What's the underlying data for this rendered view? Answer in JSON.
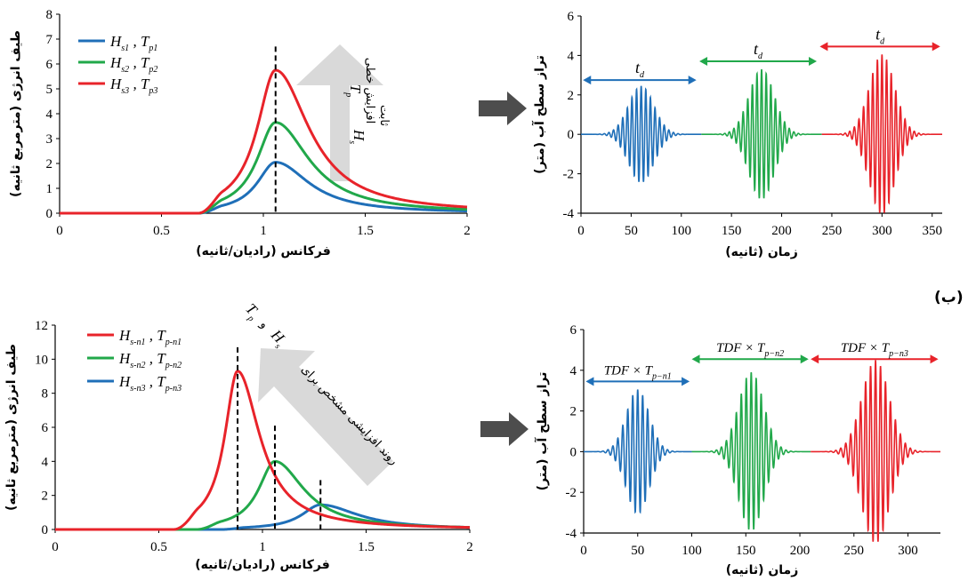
{
  "colors": {
    "blue": "#1f6fb8",
    "green": "#21a84a",
    "red": "#e8232a",
    "gray_arrow": "#d9d9d9",
    "dark_arrow": "#4d4d4d"
  },
  "panel_label_b": "(ب)",
  "chart_data": [
    {
      "id": "top-left",
      "type": "line",
      "xlabel": "فرکانس (رادیان/ثانیه)",
      "ylabel": "طیف انرژی (مترمربع ثانیه)",
      "xlim": [
        0,
        2
      ],
      "ylim": [
        0,
        8
      ],
      "xticks": [
        "0",
        "0.5",
        "1",
        "1.5",
        "2"
      ],
      "yticks": [
        "0",
        "1",
        "2",
        "3",
        "4",
        "5",
        "6",
        "7",
        "8"
      ],
      "legend_position": "top-left",
      "series": [
        {
          "name": "H_s1 , T_p1",
          "color": "blue",
          "peak_x": 1.06,
          "peak_y": 2.05,
          "onset": 0.68,
          "gamma_left": 0.11,
          "gamma_right": 0.2
        },
        {
          "name": "H_s2 , T_p2",
          "color": "green",
          "peak_x": 1.06,
          "peak_y": 3.65,
          "onset": 0.68,
          "gamma_left": 0.11,
          "gamma_right": 0.2
        },
        {
          "name": "H_s3 , T_p3",
          "color": "red",
          "peak_x": 1.06,
          "peak_y": 5.75,
          "onset": 0.68,
          "gamma_left": 0.11,
          "gamma_right": 0.2
        }
      ],
      "peak_markers": [
        {
          "x": 1.06,
          "y_top": 6.7
        }
      ],
      "annotation": {
        "persian_1": "افزایش خطی",
        "math_1": "H",
        "math_1_sub": "s",
        "persian_2": "ثابت",
        "math_2": "T",
        "math_2_sub": "p"
      }
    },
    {
      "id": "top-right",
      "type": "line",
      "xlabel": "زمان (ثانیه)",
      "ylabel": "تراز سطح آب (متر)",
      "xlim": [
        0,
        360
      ],
      "ylim": [
        -4,
        6
      ],
      "xticks": [
        "0",
        "50",
        "100",
        "150",
        "200",
        "250",
        "300",
        "350"
      ],
      "yticks": [
        "-4",
        "-2",
        "0",
        "2",
        "4",
        "6"
      ],
      "series": [
        {
          "color": "blue",
          "start": 0,
          "end": 120,
          "center": 60,
          "amp": 2.45
        },
        {
          "color": "green",
          "start": 120,
          "end": 240,
          "center": 180,
          "amp": 3.3
        },
        {
          "color": "red",
          "start": 240,
          "end": 360,
          "center": 300,
          "amp": 4.05
        }
      ],
      "duration_arrows": [
        {
          "label": "t",
          "sub": "d",
          "color": "blue",
          "x1": 2,
          "x2": 115,
          "y": 2.75
        },
        {
          "label": "t",
          "sub": "d",
          "color": "green",
          "x1": 118,
          "x2": 235,
          "y": 3.7
        },
        {
          "label": "t",
          "sub": "d",
          "color": "red",
          "x1": 238,
          "x2": 358,
          "y": 4.45
        }
      ]
    },
    {
      "id": "bottom-left",
      "type": "line",
      "xlabel": "فرکانس (رادیان/ثانیه)",
      "ylabel": "طیف انرژی (مترمربع ثانیه)",
      "xlim": [
        0,
        2
      ],
      "ylim": [
        0,
        12
      ],
      "xticks": [
        "0",
        "0.5",
        "1",
        "1.5",
        "2"
      ],
      "yticks": [
        "0",
        "2",
        "4",
        "6",
        "8",
        "10",
        "12"
      ],
      "legend_position": "top-left",
      "series": [
        {
          "name": "H_s-n1 , T_p-n1",
          "color": "red",
          "peak_x": 0.88,
          "peak_y": 9.3,
          "onset": 0.57,
          "gamma_left": 0.075,
          "gamma_right": 0.13
        },
        {
          "name": "H_s-n2 , T_p-n2",
          "color": "green",
          "peak_x": 1.06,
          "peak_y": 4.0,
          "onset": 0.68,
          "gamma_left": 0.095,
          "gamma_right": 0.17
        },
        {
          "name": "H_s-n3 , T_p-n3",
          "color": "blue",
          "peak_x": 1.28,
          "peak_y": 1.45,
          "onset": 0.8,
          "gamma_left": 0.11,
          "gamma_right": 0.22
        }
      ],
      "peak_markers": [
        {
          "x": 0.88,
          "y_top": 10.7
        },
        {
          "x": 1.06,
          "y_top": 6.1
        },
        {
          "x": 1.28,
          "y_top": 2.9
        }
      ],
      "annotation": {
        "persian_1": "روند افزایشی مشخص برای",
        "math_1": "H",
        "math_1_sub": "s",
        "persian_2": "و",
        "math_2": "T",
        "math_2_sub": "p"
      }
    },
    {
      "id": "bottom-right",
      "type": "line",
      "xlabel": "زمان (ثانیه)",
      "ylabel": "تراز سطح آب (متر)",
      "xlim": [
        0,
        330
      ],
      "ylim": [
        -4,
        6
      ],
      "xticks": [
        "0",
        "50",
        "100",
        "150",
        "200",
        "250",
        "300"
      ],
      "yticks": [
        "-4",
        "-2",
        "0",
        "2",
        "4",
        "6"
      ],
      "series": [
        {
          "color": "blue",
          "start": 0,
          "end": 100,
          "center": 50,
          "amp": 3.05
        },
        {
          "color": "green",
          "start": 100,
          "end": 210,
          "center": 155,
          "amp": 3.9
        },
        {
          "color": "red",
          "start": 210,
          "end": 330,
          "center": 270,
          "amp": 4.5
        }
      ],
      "duration_arrows": [
        {
          "label": "TDF × T",
          "sub": "p−n1",
          "color": "blue",
          "x1": 2,
          "x2": 98,
          "y": 3.45
        },
        {
          "label": "TDF × T",
          "sub": "p−n2",
          "color": "green",
          "x1": 100,
          "x2": 208,
          "y": 4.55
        },
        {
          "label": "TDF × T",
          "sub": "p−n3",
          "color": "red",
          "x1": 210,
          "x2": 328,
          "y": 4.55
        }
      ]
    }
  ]
}
